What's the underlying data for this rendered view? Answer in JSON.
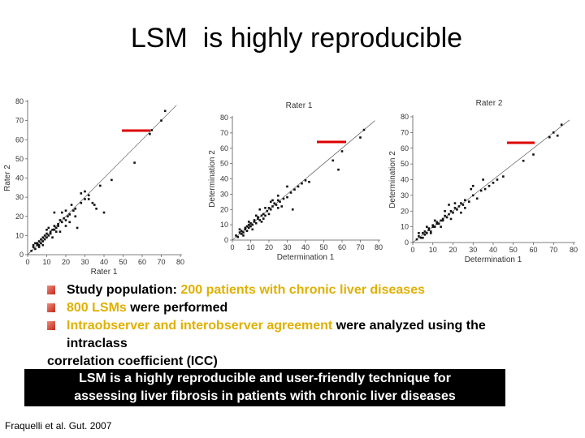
{
  "title": "LSM  is highly reproducible",
  "chart_data": [
    {
      "type": "scatter",
      "title": "",
      "xlabel": "Rater 1",
      "ylabel": "Rater 2",
      "xlim": [
        0,
        80
      ],
      "ylim": [
        0,
        80
      ],
      "xticks": [
        "0",
        "10",
        "20",
        "30",
        "40",
        "50",
        "60",
        "70",
        "80"
      ],
      "yticks": [
        "0",
        "10",
        "20",
        "30",
        "40",
        "50",
        "60",
        "70",
        "80"
      ],
      "identity_line": true,
      "points": [
        [
          2,
          2
        ],
        [
          3,
          4
        ],
        [
          4,
          3
        ],
        [
          5,
          5
        ],
        [
          5,
          6
        ],
        [
          6,
          5
        ],
        [
          6,
          7
        ],
        [
          7,
          6
        ],
        [
          7,
          8
        ],
        [
          8,
          7
        ],
        [
          8,
          9
        ],
        [
          9,
          8
        ],
        [
          9,
          10
        ],
        [
          10,
          9
        ],
        [
          10,
          11
        ],
        [
          11,
          10
        ],
        [
          12,
          12
        ],
        [
          12,
          11
        ],
        [
          13,
          13
        ],
        [
          14,
          13
        ],
        [
          14,
          15
        ],
        [
          15,
          14
        ],
        [
          16,
          16
        ],
        [
          16,
          15
        ],
        [
          17,
          18
        ],
        [
          18,
          17
        ],
        [
          19,
          19
        ],
        [
          20,
          18
        ],
        [
          21,
          20
        ],
        [
          22,
          21
        ],
        [
          24,
          23
        ],
        [
          25,
          24
        ],
        [
          3,
          5
        ],
        [
          4,
          6
        ],
        [
          6,
          4
        ],
        [
          8,
          5
        ],
        [
          10,
          13
        ],
        [
          11,
          14
        ],
        [
          13,
          9
        ],
        [
          15,
          12
        ],
        [
          18,
          22
        ],
        [
          20,
          23
        ],
        [
          22,
          17
        ],
        [
          25,
          20
        ],
        [
          28,
          27
        ],
        [
          30,
          29
        ],
        [
          32,
          31
        ],
        [
          35,
          26
        ],
        [
          38,
          36
        ],
        [
          28,
          32
        ],
        [
          30,
          33
        ],
        [
          32,
          29
        ],
        [
          34,
          27
        ],
        [
          36,
          24
        ],
        [
          26,
          14
        ],
        [
          14,
          22
        ],
        [
          40,
          22
        ],
        [
          44,
          39
        ],
        [
          56,
          48
        ],
        [
          65,
          65
        ],
        [
          70,
          70
        ],
        [
          72,
          75
        ],
        [
          64,
          63
        ],
        [
          20,
          15
        ],
        [
          23,
          26
        ],
        [
          17,
          12
        ]
      ]
    },
    {
      "type": "scatter",
      "title": "Rater 1",
      "xlabel": "Determination 1",
      "ylabel": "Determination 2",
      "xlim": [
        0,
        80
      ],
      "ylim": [
        0,
        80
      ],
      "xticks": [
        "0",
        "10",
        "20",
        "30",
        "40",
        "50",
        "60",
        "70",
        "80"
      ],
      "yticks": [
        "0",
        "10",
        "20",
        "30",
        "40",
        "50",
        "60",
        "70",
        "80"
      ],
      "identity_line": true,
      "points": [
        [
          2,
          3
        ],
        [
          3,
          2
        ],
        [
          4,
          5
        ],
        [
          5,
          4
        ],
        [
          5,
          6
        ],
        [
          6,
          5
        ],
        [
          7,
          7
        ],
        [
          7,
          8
        ],
        [
          8,
          6
        ],
        [
          8,
          9
        ],
        [
          9,
          8
        ],
        [
          9,
          10
        ],
        [
          10,
          9
        ],
        [
          10,
          11
        ],
        [
          11,
          10
        ],
        [
          12,
          12
        ],
        [
          12,
          13
        ],
        [
          13,
          11
        ],
        [
          14,
          14
        ],
        [
          14,
          15
        ],
        [
          15,
          13
        ],
        [
          16,
          16
        ],
        [
          17,
          17
        ],
        [
          18,
          16
        ],
        [
          19,
          19
        ],
        [
          20,
          21
        ],
        [
          21,
          20
        ],
        [
          22,
          22
        ],
        [
          23,
          24
        ],
        [
          24,
          23
        ],
        [
          25,
          26
        ],
        [
          26,
          25
        ],
        [
          4,
          7
        ],
        [
          6,
          3
        ],
        [
          9,
          12
        ],
        [
          11,
          7
        ],
        [
          13,
          16
        ],
        [
          16,
          12
        ],
        [
          18,
          21
        ],
        [
          20,
          17
        ],
        [
          22,
          26
        ],
        [
          25,
          21
        ],
        [
          28,
          27
        ],
        [
          30,
          28
        ],
        [
          32,
          31
        ],
        [
          34,
          33
        ],
        [
          27,
          22
        ],
        [
          33,
          20
        ],
        [
          30,
          35
        ],
        [
          36,
          35
        ],
        [
          38,
          37
        ],
        [
          40,
          39
        ],
        [
          42,
          38
        ],
        [
          15,
          20
        ],
        [
          58,
          46
        ],
        [
          60,
          58
        ],
        [
          70,
          67
        ],
        [
          72,
          72
        ],
        [
          55,
          52
        ],
        [
          25,
          29
        ],
        [
          21,
          25
        ],
        [
          17,
          14
        ]
      ]
    },
    {
      "type": "scatter",
      "title": "Rater 2",
      "xlabel": "Determination 1",
      "ylabel": "Determination 2",
      "xlim": [
        0,
        80
      ],
      "ylim": [
        0,
        80
      ],
      "xticks": [
        "0",
        "10",
        "20",
        "30",
        "40",
        "50",
        "60",
        "70",
        "80"
      ],
      "yticks": [
        "0",
        "10",
        "20",
        "30",
        "40",
        "50",
        "60",
        "70",
        "80"
      ],
      "identity_line": true,
      "points": [
        [
          2,
          2
        ],
        [
          3,
          4
        ],
        [
          4,
          3
        ],
        [
          5,
          6
        ],
        [
          6,
          5
        ],
        [
          6,
          7
        ],
        [
          7,
          6
        ],
        [
          8,
          8
        ],
        [
          8,
          9
        ],
        [
          9,
          7
        ],
        [
          10,
          10
        ],
        [
          10,
          11
        ],
        [
          11,
          10
        ],
        [
          12,
          12
        ],
        [
          12,
          13
        ],
        [
          13,
          12
        ],
        [
          14,
          14
        ],
        [
          15,
          15
        ],
        [
          15,
          14
        ],
        [
          16,
          17
        ],
        [
          17,
          16
        ],
        [
          18,
          18
        ],
        [
          19,
          20
        ],
        [
          20,
          19
        ],
        [
          21,
          22
        ],
        [
          22,
          21
        ],
        [
          23,
          23
        ],
        [
          24,
          25
        ],
        [
          25,
          24
        ],
        [
          3,
          6
        ],
        [
          5,
          3
        ],
        [
          7,
          10
        ],
        [
          9,
          6
        ],
        [
          11,
          14
        ],
        [
          14,
          10
        ],
        [
          16,
          20
        ],
        [
          19,
          15
        ],
        [
          21,
          25
        ],
        [
          24,
          19
        ],
        [
          26,
          27
        ],
        [
          28,
          26
        ],
        [
          30,
          30
        ],
        [
          32,
          28
        ],
        [
          34,
          33
        ],
        [
          29,
          34
        ],
        [
          36,
          34
        ],
        [
          38,
          36
        ],
        [
          30,
          36
        ],
        [
          35,
          40
        ],
        [
          40,
          38
        ],
        [
          42,
          40
        ],
        [
          18,
          24
        ],
        [
          45,
          42
        ],
        [
          60,
          56
        ],
        [
          68,
          67
        ],
        [
          70,
          70
        ],
        [
          74,
          75
        ],
        [
          72,
          68
        ],
        [
          55,
          52
        ],
        [
          26,
          22
        ]
      ]
    }
  ],
  "bullets": [
    {
      "parts": [
        {
          "text": "Study population: ",
          "hl": false
        },
        {
          "text": "200 patients with chronic liver diseases",
          "hl": true
        }
      ]
    },
    {
      "parts": [
        {
          "text": "800 LSMs",
          "hl": true
        },
        {
          "text": " were performed",
          "hl": false
        }
      ]
    },
    {
      "parts": [
        {
          "text": "Intraobserver and interobserver agreement",
          "hl": true
        },
        {
          "text": " were analyzed using the",
          "hl": false
        }
      ]
    }
  ],
  "bullet_cont_1": "intraclass",
  "bullet_cont_2": "correlation coefficient (ICC)",
  "conclusion_line1": "LSM is a highly reproducible and user-friendly technique for",
  "conclusion_line2": "assessing liver fibrosis in patients with chronic liver diseases",
  "citation": "Fraquelli et al. Gut. 2007",
  "colors": {
    "highlight": "#e0b000",
    "marker_line": "#dd0000",
    "bullet": "#c0291a",
    "conclusion_bg": "#000000",
    "conclusion_fg": "#ffffff"
  }
}
